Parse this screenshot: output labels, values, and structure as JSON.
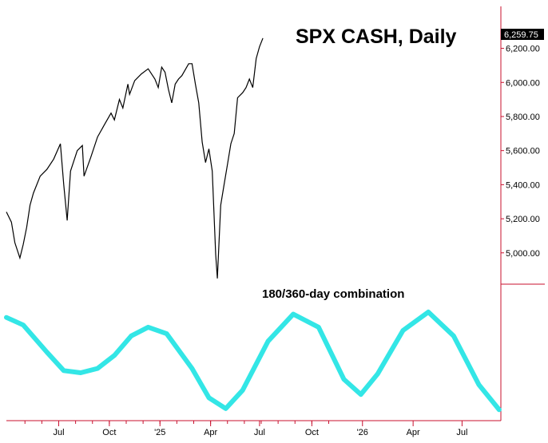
{
  "chart_data": [
    {
      "type": "line",
      "title": "SPX CASH, Daily",
      "last_value_label": "6,259.75",
      "ylim": [
        4835,
        6390
      ],
      "y_ticks": [
        5000,
        5200,
        5400,
        5600,
        5800,
        6000,
        6200
      ],
      "y_tick_labels": [
        "5,000.00",
        "5,200.00",
        "5,400.00",
        "5,600.00",
        "5,800.00",
        "6,000.00",
        "6,200.00"
      ],
      "series": [
        {
          "values": [
            5240,
            5180,
            5060,
            4970,
            5050,
            5150,
            5280,
            5350,
            5450,
            5490,
            5550,
            5640,
            5400,
            5190,
            5480,
            5600,
            5630,
            5450,
            5560,
            5680,
            5750,
            5820,
            5780,
            5900,
            5850,
            5990,
            5930,
            6010,
            6050,
            6080,
            6020,
            5970,
            6090,
            6060,
            5960,
            5880,
            5990,
            6020,
            6040,
            6110,
            6110,
            5990,
            5880,
            5650,
            5530,
            5610,
            5480,
            4990,
            4850,
            5280,
            5400,
            5520,
            5640,
            5700,
            5910,
            5940,
            5970,
            6020,
            5970,
            6140,
            6210,
            6260
          ]
        }
      ],
      "series_x": [
        0,
        3,
        5,
        8,
        10,
        12,
        14,
        16,
        20,
        24,
        28,
        32,
        34,
        36,
        38,
        42,
        45,
        46,
        50,
        54,
        58,
        62,
        64,
        67,
        69,
        72,
        73,
        76,
        80,
        84,
        88,
        90,
        92,
        94,
        96,
        98,
        100,
        102,
        104,
        108,
        110,
        112,
        114,
        116,
        118,
        120,
        122,
        124,
        125,
        127,
        129,
        131,
        133,
        135,
        137,
        140,
        142,
        144,
        146,
        148,
        150,
        152
      ]
    },
    {
      "type": "line",
      "title": "180/360-day combination",
      "ylim": [
        0,
        1
      ],
      "series": [
        {
          "values": [
            0.87,
            0.8,
            0.55,
            0.38,
            0.36,
            0.4,
            0.52,
            0.7,
            0.78,
            0.72,
            0.4,
            0.13,
            0.03,
            0.2,
            0.65,
            0.9,
            0.78,
            0.3,
            0.16,
            0.35,
            0.75,
            0.92,
            0.7,
            0.25,
            0.02
          ]
        }
      ],
      "series_x": [
        0,
        10,
        24,
        34,
        44,
        54,
        64,
        74,
        84,
        95,
        110,
        120,
        130,
        140,
        155,
        170,
        185,
        200,
        210,
        220,
        235,
        250,
        265,
        280,
        292
      ]
    }
  ],
  "x_axis": {
    "labels": [
      "Jul",
      "Oct",
      "'25",
      "Apr",
      "Jul",
      "Oct",
      "'26",
      "Apr",
      "Jul"
    ],
    "label_positions": [
      31,
      61,
      91,
      121,
      150,
      181,
      211,
      241,
      270
    ],
    "total": 293
  },
  "colors": {
    "price_line": "#000000",
    "cycle_line": "#33e6e6",
    "axis": "#c8102e",
    "last_value_bg": "#000000"
  }
}
